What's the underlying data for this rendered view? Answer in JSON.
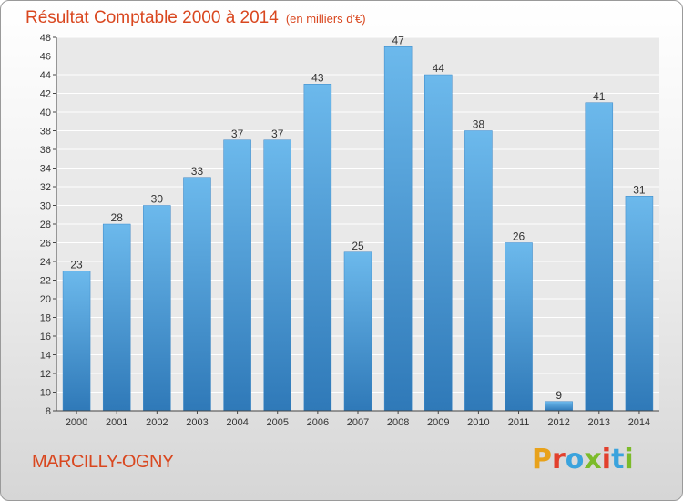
{
  "header": {
    "title": "Résultat Comptable 2000 à 2014",
    "subtitle": "(en milliers d'€)"
  },
  "footer": {
    "city": "MARCILLY-OGNY",
    "brand_letters": [
      "P",
      "r",
      "o",
      "x",
      "i",
      "t",
      "i"
    ],
    "brand_colors": [
      "#e8a21b",
      "#e2402d",
      "#3aa3dd",
      "#7cbb2a",
      "#e2402d",
      "#3aa3dd",
      "#7cbb2a"
    ]
  },
  "colors": {
    "bar_top": "#6cb9ec",
    "bar_bottom": "#2f79b8",
    "axis": "#444444",
    "grid": "#ffffff"
  },
  "chart_data": {
    "type": "bar",
    "title": "Résultat Comptable 2000 à 2014",
    "xlabel": "",
    "ylabel": "",
    "categories": [
      "2000",
      "2001",
      "2002",
      "2003",
      "2004",
      "2005",
      "2006",
      "2007",
      "2008",
      "2009",
      "2010",
      "2011",
      "2012",
      "2013",
      "2014"
    ],
    "values": [
      23,
      28,
      30,
      33,
      37,
      37,
      43,
      25,
      47,
      44,
      38,
      26,
      9,
      41,
      31
    ],
    "ylim": [
      8,
      48
    ],
    "yticks": [
      8,
      10,
      12,
      14,
      16,
      18,
      20,
      22,
      24,
      26,
      28,
      30,
      32,
      34,
      36,
      38,
      40,
      42,
      44,
      46,
      48
    ],
    "grid": true
  }
}
